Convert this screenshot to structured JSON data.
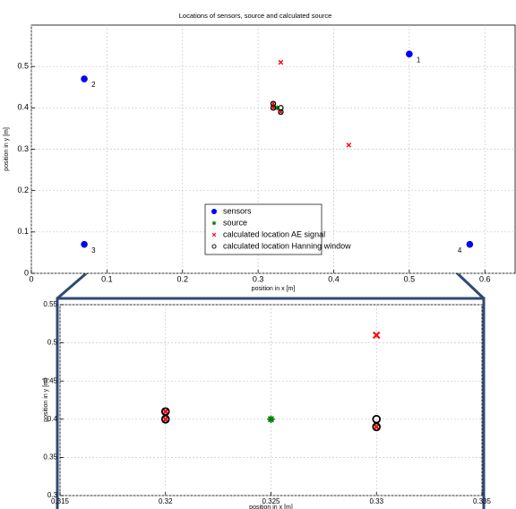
{
  "chart_data": [
    {
      "type": "scatter",
      "title": "Locations of sensors, source and calculated source",
      "x_label": "position in x [m]",
      "y_label": "position in y [m]",
      "xlim": [
        0,
        0.64
      ],
      "ylim": [
        0,
        0.6
      ],
      "xticks": [
        0,
        0.1,
        0.2,
        0.3,
        0.4,
        0.5,
        0.6
      ],
      "yticks": [
        0,
        0.1,
        0.2,
        0.3,
        0.4,
        0.5
      ],
      "grid": true,
      "legend": "center",
      "series": [
        {
          "name": "sensors",
          "marker": "dot",
          "color": "#0000ff",
          "x": [
            0.5,
            0.07,
            0.07,
            0.58
          ],
          "y": [
            0.53,
            0.47,
            0.07,
            0.07
          ],
          "point_labels": [
            "1",
            "2",
            "3",
            "4"
          ]
        },
        {
          "name": "source",
          "marker": "star",
          "color": "#008000",
          "x": [
            0.325
          ],
          "y": [
            0.4
          ]
        },
        {
          "name": "calculated location AE signal",
          "marker": "cross",
          "color": "#ff0000",
          "x": [
            0.32,
            0.32,
            0.33,
            0.33,
            0.42
          ],
          "y": [
            0.41,
            0.4,
            0.39,
            0.51,
            0.31
          ]
        },
        {
          "name": "calculated location Hanning window",
          "marker": "circle",
          "color": "#000000",
          "x": [
            0.32,
            0.32,
            0.33,
            0.33
          ],
          "y": [
            0.41,
            0.4,
            0.4,
            0.39
          ]
        }
      ]
    },
    {
      "type": "scatter",
      "x_label": "position in x [m]",
      "y_label": "position in y [m]",
      "xlim": [
        0.315,
        0.335
      ],
      "ylim": [
        0.3,
        0.55
      ],
      "xticks": [
        0.315,
        0.32,
        0.325,
        0.33,
        0.335
      ],
      "yticks": [
        0.3,
        0.35,
        0.4,
        0.45,
        0.5,
        0.55
      ],
      "grid": true,
      "series": [
        {
          "name": "source",
          "marker": "star",
          "color": "#008000",
          "x": [
            0.325
          ],
          "y": [
            0.4
          ]
        },
        {
          "name": "calculated location AE signal",
          "marker": "cross",
          "color": "#ff0000",
          "x": [
            0.32,
            0.32,
            0.33,
            0.33
          ],
          "y": [
            0.41,
            0.4,
            0.39,
            0.51
          ]
        },
        {
          "name": "calculated location Hanning window",
          "marker": "circle",
          "color": "#000000",
          "x": [
            0.32,
            0.32,
            0.33,
            0.33
          ],
          "y": [
            0.41,
            0.4,
            0.4,
            0.39
          ]
        }
      ]
    }
  ]
}
